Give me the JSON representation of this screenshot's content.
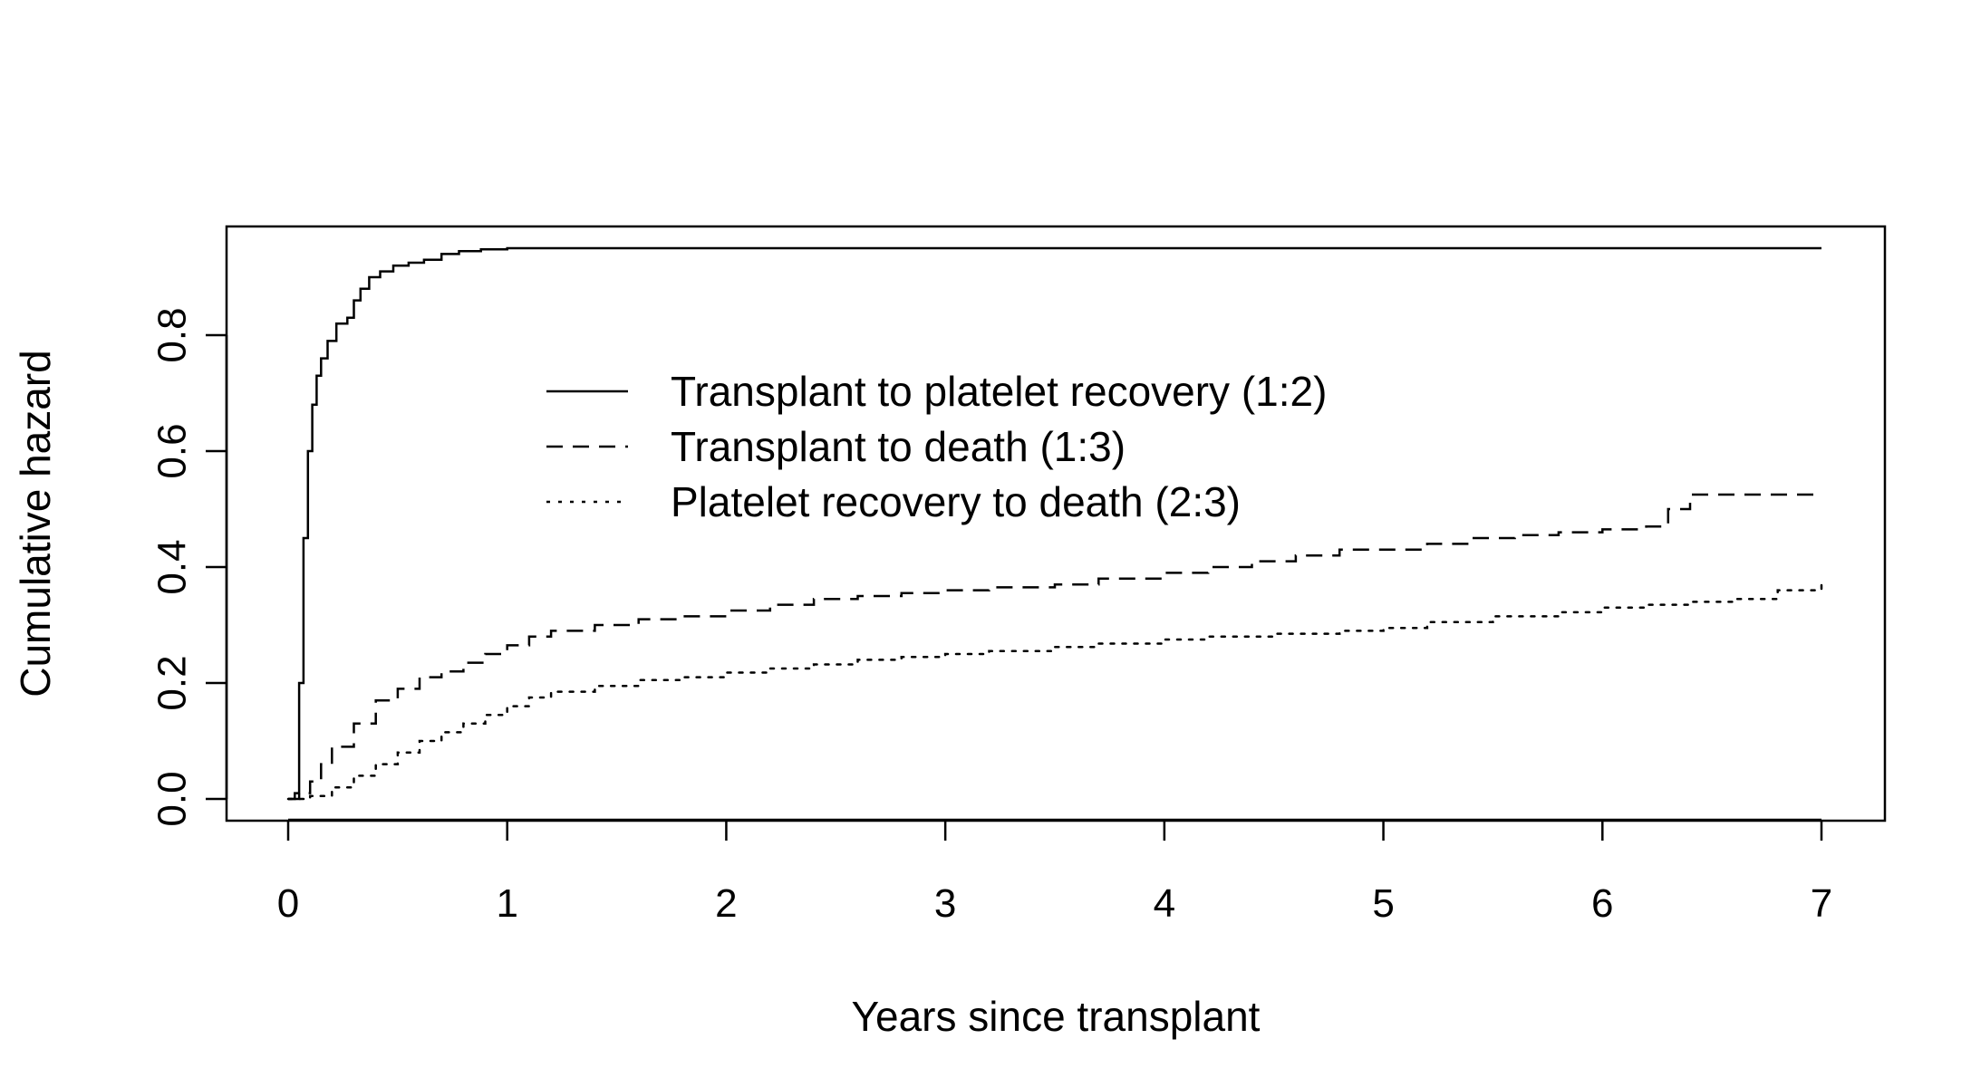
{
  "chart_data": {
    "type": "line",
    "title": "",
    "xlabel": "Years since transplant",
    "ylabel": "Cumulative hazard",
    "xlim": [
      0,
      7
    ],
    "ylim": [
      0,
      0.95
    ],
    "xticks": [
      "0",
      "1",
      "2",
      "3",
      "4",
      "5",
      "6",
      "7"
    ],
    "yticks": [
      "0.0",
      "0.2",
      "0.4",
      "0.6",
      "0.8"
    ],
    "grid": false,
    "legend_position": "center",
    "series": [
      {
        "name": "Transplant to platelet recovery (1:2)",
        "line_style": "solid",
        "x": [
          0,
          0.03,
          0.05,
          0.07,
          0.09,
          0.11,
          0.13,
          0.15,
          0.18,
          0.22,
          0.27,
          0.3,
          0.33,
          0.37,
          0.42,
          0.48,
          0.55,
          0.62,
          0.7,
          0.78,
          0.88,
          1.0,
          1.05,
          7.0
        ],
        "y": [
          0,
          0.01,
          0.2,
          0.45,
          0.6,
          0.68,
          0.73,
          0.76,
          0.79,
          0.82,
          0.83,
          0.86,
          0.88,
          0.9,
          0.91,
          0.92,
          0.925,
          0.93,
          0.94,
          0.945,
          0.948,
          0.95,
          0.95,
          0.95
        ]
      },
      {
        "name": "Transplant to death (1:3)",
        "line_style": "dashed",
        "x": [
          0,
          0.05,
          0.1,
          0.15,
          0.2,
          0.3,
          0.4,
          0.5,
          0.6,
          0.7,
          0.8,
          0.9,
          1.0,
          1.1,
          1.2,
          1.4,
          1.6,
          1.8,
          2.0,
          2.2,
          2.4,
          2.6,
          2.8,
          3.0,
          3.2,
          3.5,
          3.7,
          4.0,
          4.2,
          4.4,
          4.6,
          4.8,
          5.0,
          5.2,
          5.4,
          5.6,
          5.8,
          6.0,
          6.2,
          6.3,
          6.4,
          7.0
        ],
        "y": [
          0,
          0.01,
          0.03,
          0.06,
          0.09,
          0.13,
          0.17,
          0.19,
          0.21,
          0.22,
          0.235,
          0.25,
          0.265,
          0.28,
          0.29,
          0.3,
          0.31,
          0.315,
          0.325,
          0.335,
          0.345,
          0.35,
          0.355,
          0.36,
          0.365,
          0.37,
          0.38,
          0.39,
          0.4,
          0.41,
          0.42,
          0.43,
          0.43,
          0.44,
          0.45,
          0.455,
          0.46,
          0.465,
          0.47,
          0.5,
          0.525,
          0.525
        ]
      },
      {
        "name": "Platelet recovery to death (2:3)",
        "line_style": "dotted",
        "x": [
          0,
          0.1,
          0.2,
          0.3,
          0.4,
          0.5,
          0.6,
          0.7,
          0.8,
          0.9,
          1.0,
          1.1,
          1.2,
          1.4,
          1.6,
          1.8,
          2.0,
          2.2,
          2.4,
          2.6,
          2.8,
          3.0,
          3.2,
          3.5,
          3.7,
          4.0,
          4.2,
          4.5,
          4.8,
          5.0,
          5.2,
          5.5,
          5.8,
          6.0,
          6.2,
          6.4,
          6.6,
          6.8,
          7.0
        ],
        "y": [
          0,
          0.005,
          0.02,
          0.04,
          0.06,
          0.08,
          0.1,
          0.115,
          0.13,
          0.145,
          0.16,
          0.175,
          0.185,
          0.195,
          0.205,
          0.21,
          0.218,
          0.225,
          0.232,
          0.24,
          0.245,
          0.25,
          0.255,
          0.262,
          0.268,
          0.275,
          0.28,
          0.285,
          0.29,
          0.295,
          0.305,
          0.315,
          0.322,
          0.33,
          0.335,
          0.34,
          0.345,
          0.36,
          0.37
        ]
      }
    ]
  }
}
